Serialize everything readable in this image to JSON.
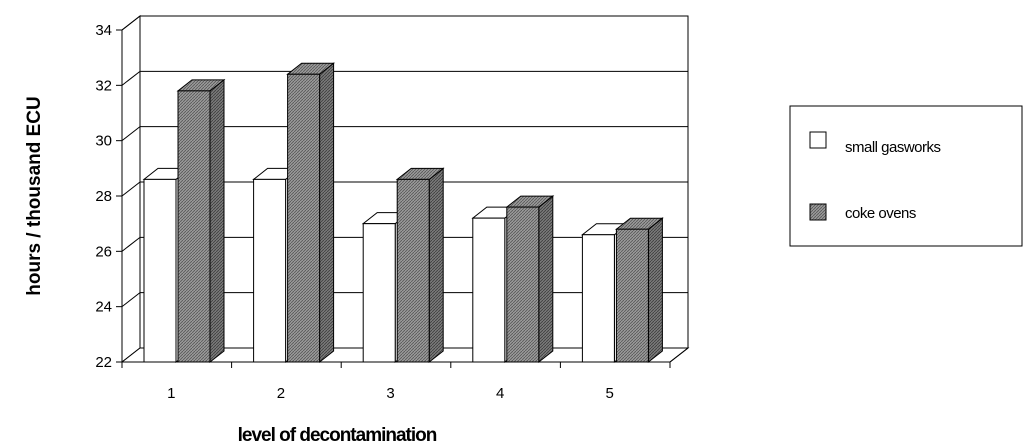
{
  "chart_data": {
    "type": "bar",
    "style": "3d-clustered-column",
    "title": "",
    "xlabel": "level of decontamination",
    "ylabel": "hours / thousand ECU",
    "categories": [
      "1",
      "2",
      "3",
      "4",
      "5"
    ],
    "ylim": [
      22,
      34
    ],
    "yticks": [
      22,
      24,
      26,
      28,
      30,
      32,
      34
    ],
    "grid": "horizontal",
    "legend_position": "right",
    "series": [
      {
        "name": "small gasworks",
        "values": [
          28.6,
          28.6,
          27.0,
          27.2,
          26.6
        ],
        "color": "#ffffff"
      },
      {
        "name": "coke ovens",
        "values": [
          31.8,
          32.4,
          28.6,
          27.6,
          26.8
        ],
        "color": "#8c8c8c"
      }
    ]
  }
}
